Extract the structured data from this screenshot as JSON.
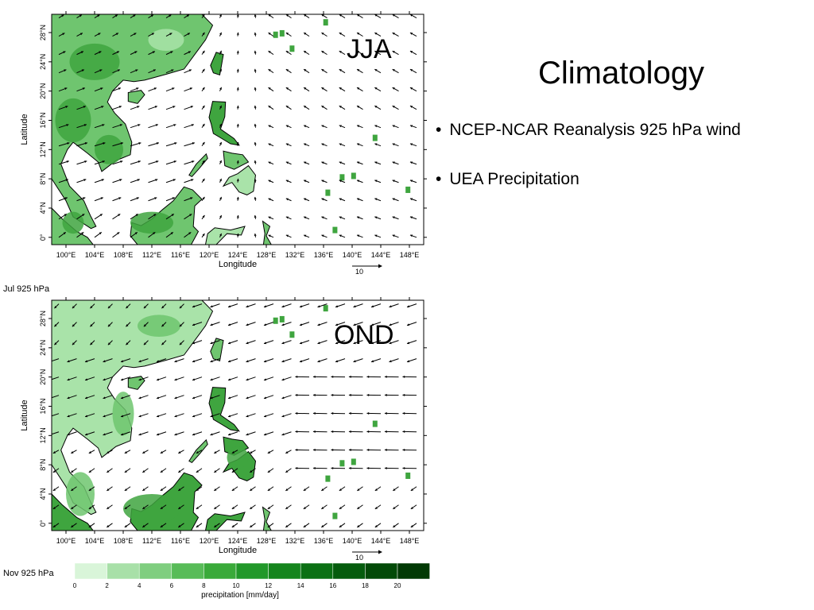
{
  "slide": {
    "title": "Climatology",
    "bullets": [
      "NCEP-NCAR Reanalysis 925 hPa wind",
      "UEA Precipitation"
    ]
  },
  "panels": [
    {
      "season_label": "JJA",
      "date_label": "Jul 925 hPa",
      "xlabel": "Longitude",
      "ylabel": "Latitude",
      "lon_ticks": [
        "100°E",
        "104°E",
        "108°E",
        "112°E",
        "116°E",
        "120°E",
        "124°E",
        "128°E",
        "132°E",
        "136°E",
        "140°E",
        "144°E",
        "148°E"
      ],
      "lat_ticks": [
        "0°",
        "4°N",
        "8°N",
        "12°N",
        "16°N",
        "20°N",
        "24°N",
        "28°N"
      ],
      "ref_vector_label": "10",
      "wind_regime": "southwest monsoon"
    },
    {
      "season_label": "OND",
      "date_label": "Nov 925 hPa",
      "xlabel": "Longitude",
      "ylabel": "Latitude",
      "lon_ticks": [
        "100°E",
        "104°E",
        "108°E",
        "112°E",
        "116°E",
        "120°E",
        "124°E",
        "128°E",
        "132°E",
        "136°E",
        "140°E",
        "144°E",
        "148°E"
      ],
      "lat_ticks": [
        "0°",
        "4°N",
        "8°N",
        "12°N",
        "16°N",
        "20°N",
        "24°N",
        "28°N"
      ],
      "ref_vector_label": "10",
      "wind_regime": "northeast monsoon"
    }
  ],
  "colorbar": {
    "label": "precipitation [mm/day]",
    "ticks": [
      "0",
      "2",
      "4",
      "6",
      "8",
      "10",
      "12",
      "14",
      "16",
      "18",
      "20"
    ],
    "colors": [
      "#d9f5d9",
      "#a8e0a8",
      "#7fce7f",
      "#58bc58",
      "#3aaa3a",
      "#22982a",
      "#15851d",
      "#0b7014",
      "#055c0d",
      "#034a08",
      "#023a05"
    ]
  },
  "colors": {
    "land_light": "#a9e3a9",
    "land_medium": "#6fc56f",
    "land_dark": "#3fa53f",
    "coast": "#000000"
  }
}
